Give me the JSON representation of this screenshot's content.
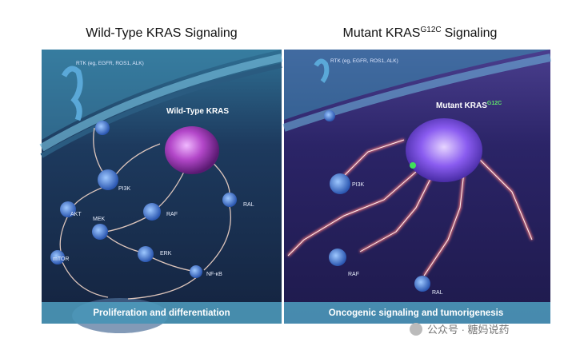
{
  "panels": [
    {
      "title": "Wild-Type KRAS Signaling",
      "rtk": "RTK (eg, EGFR, ROS1, ALK)",
      "kras": "Wild-Type KRAS",
      "nodes": [
        "PI3K",
        "AKT",
        "MEK",
        "RAF",
        "RAL",
        "mTOR",
        "ERK",
        "NF-κB"
      ],
      "footer": "Proliferation and differentiation"
    },
    {
      "title": "Mutant KRAS",
      "title_superscript": "G12C",
      "title_suffix": "Signaling",
      "rtk": "RTK (eg, EGFR, ROS1, ALK)",
      "kras": "Mutant KRAS",
      "kras_superscript": "G12C",
      "nodes": [
        "PI3K",
        "RAF",
        "RAL"
      ],
      "footer": "Oncogenic signaling and tumorigenesis"
    }
  ],
  "watermark": "公众号 · 糖妈说药"
}
